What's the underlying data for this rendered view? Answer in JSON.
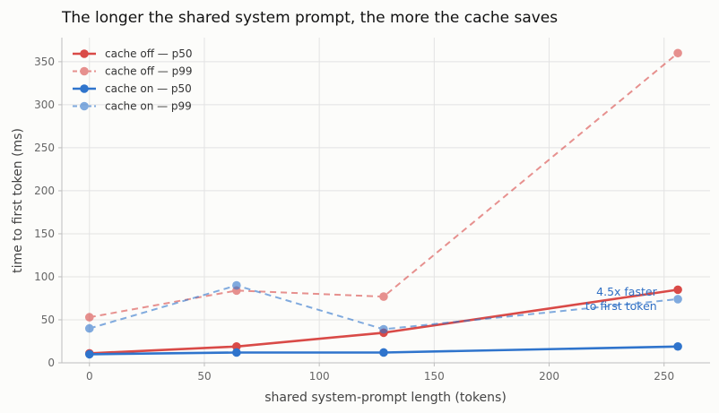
{
  "chart_data": {
    "type": "line",
    "title": "The longer the shared system prompt, the more the cache saves",
    "xlabel": "shared system-prompt length (tokens)",
    "ylabel": "time to first token (ms)",
    "xlim": [
      -12,
      270
    ],
    "ylim": [
      0,
      378
    ],
    "xticks": [
      0,
      50,
      100,
      150,
      200,
      250
    ],
    "yticks": [
      0,
      50,
      100,
      150,
      200,
      250,
      300,
      350
    ],
    "x": [
      0,
      64,
      128,
      256
    ],
    "grid": true,
    "legend_position": "top-left",
    "series": [
      {
        "name": "cache off — p50",
        "values": [
          11,
          19,
          35,
          85
        ],
        "color": "#d94a47",
        "dashed": false,
        "opacity": 1
      },
      {
        "name": "cache off — p99",
        "values": [
          53,
          84,
          77,
          360
        ],
        "color": "#d94a47",
        "dashed": true,
        "opacity": 0.6
      },
      {
        "name": "cache on — p50",
        "values": [
          10,
          12,
          12,
          19
        ],
        "color": "#2f74cc",
        "dashed": false,
        "opacity": 1
      },
      {
        "name": "cache on — p99",
        "values": [
          40,
          90,
          39,
          74
        ],
        "color": "#2f74cc",
        "dashed": true,
        "opacity": 0.6
      }
    ],
    "annotations": [
      {
        "lines": [
          "4.5x faster",
          "to first token"
        ],
        "x": 250,
        "y": 72,
        "color": "#2f6fc4"
      }
    ]
  }
}
